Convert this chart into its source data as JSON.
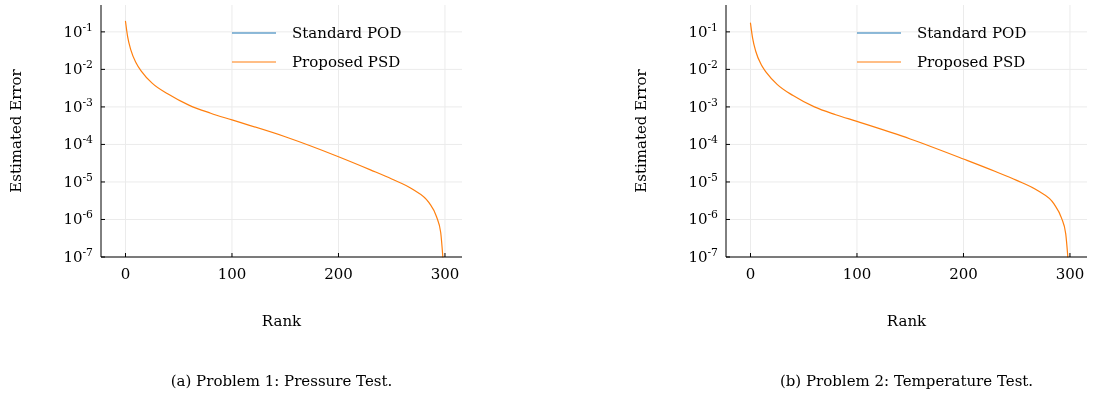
{
  "chart_data": [
    {
      "type": "line",
      "xlabel": "Rank",
      "ylabel": "Estimated Error",
      "log": "y",
      "grid": true,
      "legend": "top right",
      "xlim": [
        -23,
        316
      ],
      "xticks": [
        0,
        100,
        200,
        300
      ],
      "ylim": [
        1e-07,
        0.52
      ],
      "yticks": [
        {
          "value": 0.1,
          "label": "10$^{-1}$"
        },
        {
          "value": 0.01,
          "label": "10$^{-2}$"
        },
        {
          "value": 0.001,
          "label": "10$^{-3}$"
        },
        {
          "value": 0.0001,
          "label": "10$^{-4}$"
        },
        {
          "value": 1e-05,
          "label": "10$^{-5}$"
        },
        {
          "value": 1e-06,
          "label": "10$^{-6}$"
        },
        {
          "value": 1e-07,
          "label": "10$^{-7}$"
        }
      ],
      "x": [
        0,
        2,
        5,
        10,
        15,
        25,
        40,
        60,
        80,
        100,
        150,
        200,
        230,
        250,
        270,
        285,
        292,
        296,
        298
      ],
      "annotations": [
        "(a) Problem 1: Pressure Test."
      ],
      "series": [
        {
          "name": "Standard POD",
          "color": "#1f77b4",
          "values": [
            null,
            null,
            null,
            null,
            null,
            null,
            null,
            null,
            null,
            null,
            null,
            null,
            null,
            null,
            null,
            null,
            null,
            null,
            null
          ]
        },
        {
          "name": "Proposed PSD",
          "color": "#ff7f0e",
          "values": [
            0.19,
            0.075,
            0.033,
            0.0148,
            0.0089,
            0.0043,
            0.0022,
            0.0011,
            0.00068,
            0.00045,
            0.00016,
            4.7e-05,
            2.1e-05,
            1.2e-05,
            6.3e-06,
            2.8e-06,
            1.2e-06,
            4.5e-07,
            1e-07
          ]
        }
      ]
    },
    {
      "type": "line",
      "xlabel": "Rank",
      "ylabel": "Estimated Error",
      "log": "y",
      "grid": true,
      "legend": "top right",
      "xlim": [
        -23,
        316
      ],
      "xticks": [
        0,
        100,
        200,
        300
      ],
      "ylim": [
        1e-07,
        0.52
      ],
      "yticks": [
        {
          "value": 0.1,
          "label": "10$^{-1}$"
        },
        {
          "value": 0.01,
          "label": "10$^{-2}$"
        },
        {
          "value": 0.001,
          "label": "10$^{-3}$"
        },
        {
          "value": 0.0001,
          "label": "10$^{-4}$"
        },
        {
          "value": 1e-05,
          "label": "10$^{-5}$"
        },
        {
          "value": 1e-06,
          "label": "10$^{-6}$"
        },
        {
          "value": 1e-07,
          "label": "10$^{-7}$"
        }
      ],
      "x": [
        0,
        2,
        5,
        10,
        15,
        25,
        40,
        60,
        80,
        100,
        150,
        200,
        230,
        250,
        270,
        285,
        292,
        296,
        298
      ],
      "annotations": [
        "(b) Problem 2: Temperature Test."
      ],
      "series": [
        {
          "name": "Standard POD",
          "color": "#1f77b4",
          "values": [
            null,
            null,
            null,
            null,
            null,
            null,
            null,
            null,
            null,
            null,
            null,
            null,
            null,
            null,
            null,
            null,
            null,
            null,
            null
          ]
        },
        {
          "name": "Proposed PSD",
          "color": "#ff7f0e",
          "values": [
            0.17,
            0.068,
            0.03,
            0.0135,
            0.0082,
            0.004,
            0.002,
            0.001,
            0.00062,
            0.00041,
            0.00014,
            4.1e-05,
            1.9e-05,
            1.1e-05,
            5.8e-06,
            2.6e-06,
            1.1e-06,
            4.2e-07,
            1e-07
          ]
        }
      ]
    }
  ]
}
